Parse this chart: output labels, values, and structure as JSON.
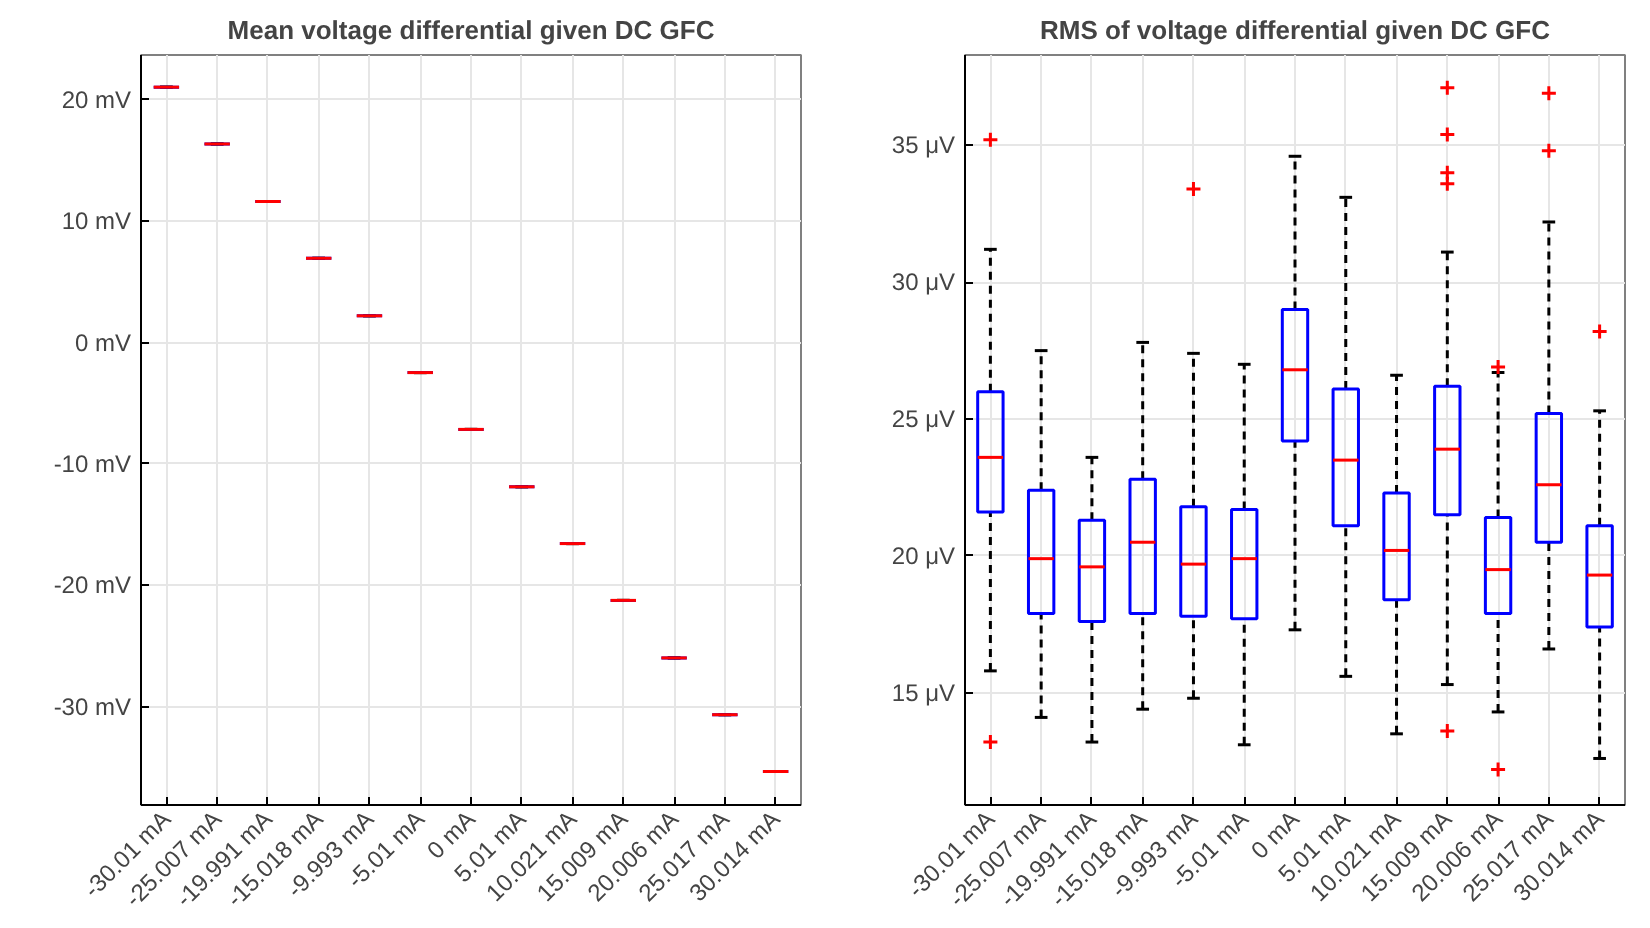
{
  "chart_data": [
    {
      "type": "box",
      "title": "Mean voltage differential given DC GFC",
      "categories": [
        "-30.01 mA",
        "-25.007 mA",
        "-19.991 mA",
        "-15.018 mA",
        "-9.993 mA",
        "-5.01 mA",
        "0 mA",
        "5.01 mA",
        "10.021 mA",
        "15.009 mA",
        "20.006 mA",
        "25.017 mA",
        "30.014 mA"
      ],
      "boxes": [
        {
          "low": 21.05,
          "q1": 21.05,
          "median": 21.05,
          "q3": 21.05,
          "high": 21.05
        },
        {
          "low": 16.37,
          "q1": 16.37,
          "median": 16.37,
          "q3": 16.37,
          "high": 16.37
        },
        {
          "low": 11.63,
          "q1": 11.63,
          "median": 11.63,
          "q3": 11.63,
          "high": 11.63
        },
        {
          "low": 6.95,
          "q1": 6.95,
          "median": 6.95,
          "q3": 6.95,
          "high": 6.95
        },
        {
          "low": 2.21,
          "q1": 2.21,
          "median": 2.21,
          "q3": 2.21,
          "high": 2.21
        },
        {
          "low": -2.47,
          "q1": -2.47,
          "median": -2.47,
          "q3": -2.47,
          "high": -2.47
        },
        {
          "low": -7.15,
          "q1": -7.15,
          "median": -7.15,
          "q3": -7.15,
          "high": -7.15
        },
        {
          "low": -11.88,
          "q1": -11.88,
          "median": -11.88,
          "q3": -11.88,
          "high": -11.88
        },
        {
          "low": -16.56,
          "q1": -16.56,
          "median": -16.56,
          "q3": -16.56,
          "high": -16.56
        },
        {
          "low": -21.24,
          "q1": -21.24,
          "median": -21.24,
          "q3": -21.24,
          "high": -21.24
        },
        {
          "low": -25.98,
          "q1": -25.98,
          "median": -25.98,
          "q3": -25.98,
          "high": -25.98
        },
        {
          "low": -30.66,
          "q1": -30.66,
          "median": -30.66,
          "q3": -30.66,
          "high": -30.66
        },
        {
          "low": -35.34,
          "q1": -35.34,
          "median": -35.34,
          "q3": -35.34,
          "high": -35.34
        }
      ],
      "ylim": [
        -38.1,
        23.7
      ],
      "yticks": [
        {
          "value": -30,
          "label": "-30 mV"
        },
        {
          "value": -20,
          "label": "-20 mV"
        },
        {
          "value": -10,
          "label": "-10 mV"
        },
        {
          "value": 0,
          "label": "0 mV"
        },
        {
          "value": 10,
          "label": "10 mV"
        },
        {
          "value": 20,
          "label": "20 mV"
        }
      ],
      "grid": true
    },
    {
      "type": "box",
      "title": "RMS of voltage differential given DC GFC",
      "categories": [
        "-30.01 mA",
        "-25.007 mA",
        "-19.991 mA",
        "-15.018 mA",
        "-9.993 mA",
        "-5.01 mA",
        "0 mA",
        "5.01 mA",
        "10.021 mA",
        "15.009 mA",
        "20.006 mA",
        "25.017 mA",
        "30.014 mA"
      ],
      "boxes": [
        {
          "low": 15.8,
          "q1": 21.6,
          "median": 23.6,
          "q3": 26.0,
          "high": 31.2,
          "outliers": [
            35.2,
            13.2
          ]
        },
        {
          "low": 14.1,
          "q1": 17.9,
          "median": 19.9,
          "q3": 22.4,
          "high": 27.5
        },
        {
          "low": 13.2,
          "q1": 17.6,
          "median": 19.6,
          "q3": 21.3,
          "high": 23.6
        },
        {
          "low": 14.4,
          "q1": 17.9,
          "median": 20.5,
          "q3": 22.8,
          "high": 27.8
        },
        {
          "low": 14.8,
          "q1": 17.8,
          "median": 19.7,
          "q3": 21.8,
          "high": 27.4,
          "outliers": [
            33.4
          ]
        },
        {
          "low": 13.1,
          "q1": 17.7,
          "median": 19.9,
          "q3": 21.7,
          "high": 27.0
        },
        {
          "low": 17.3,
          "q1": 24.2,
          "median": 26.8,
          "q3": 29.0,
          "high": 34.6
        },
        {
          "low": 15.6,
          "q1": 21.1,
          "median": 23.5,
          "q3": 26.1,
          "high": 33.1
        },
        {
          "low": 13.5,
          "q1": 18.4,
          "median": 20.2,
          "q3": 22.3,
          "high": 26.6
        },
        {
          "low": 15.3,
          "q1": 21.5,
          "median": 23.9,
          "q3": 26.2,
          "high": 31.1,
          "outliers": [
            37.1,
            35.4,
            34.0,
            33.6,
            13.6
          ]
        },
        {
          "low": 14.3,
          "q1": 17.9,
          "median": 19.5,
          "q3": 21.4,
          "high": 26.7,
          "outliers": [
            26.9,
            12.2
          ]
        },
        {
          "low": 16.6,
          "q1": 20.5,
          "median": 22.6,
          "q3": 25.2,
          "high": 32.2,
          "outliers": [
            36.9,
            34.8
          ]
        },
        {
          "low": 12.6,
          "q1": 17.4,
          "median": 19.3,
          "q3": 21.1,
          "high": 25.3,
          "outliers": [
            28.2
          ]
        }
      ],
      "ylim": [
        10.9,
        38.3
      ],
      "yticks": [
        {
          "value": 15,
          "label": "15 μV"
        },
        {
          "value": 20,
          "label": "20 μV"
        },
        {
          "value": 25,
          "label": "25 μV"
        },
        {
          "value": 30,
          "label": "30 μV"
        },
        {
          "value": 35,
          "label": "35 μV"
        }
      ],
      "grid": true
    }
  ]
}
